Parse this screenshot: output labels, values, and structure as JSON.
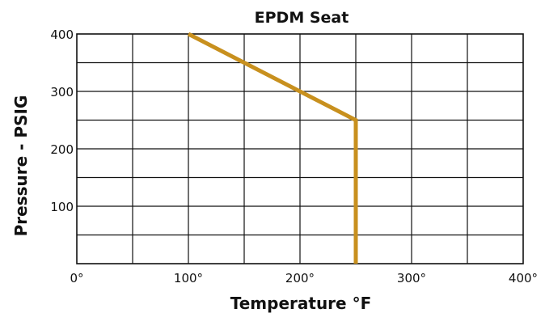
{
  "chart_data": {
    "type": "line",
    "title": "EPDM Seat",
    "xlabel": "Temperature °F",
    "ylabel": "Pressure - PSIG",
    "xlim": [
      0,
      400
    ],
    "ylim": [
      0,
      400
    ],
    "x_ticks": [
      0,
      100,
      200,
      300,
      400
    ],
    "x_tick_labels": [
      "0°",
      "100°",
      "200°",
      "300°",
      "400°"
    ],
    "y_ticks": [
      100,
      200,
      300,
      400
    ],
    "y_tick_labels": [
      "100",
      "200",
      "300",
      "400"
    ],
    "grid": true,
    "grid_step": 50,
    "series": [
      {
        "color": "#c8901e",
        "x": [
          100,
          250,
          250
        ],
        "y": [
          400,
          250,
          0
        ]
      }
    ]
  }
}
